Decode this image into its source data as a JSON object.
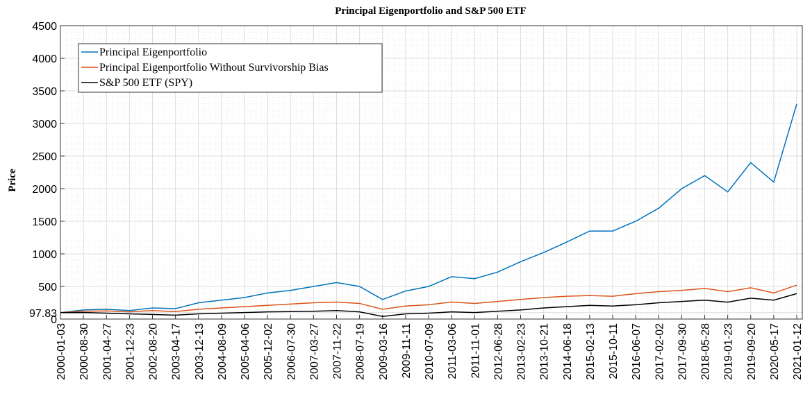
{
  "chart_data": {
    "type": "line",
    "title": "Principal Eigenportfolio and S&P 500 ETF",
    "y_label": "Price",
    "x": [
      "2000-01-03",
      "2000-08-30",
      "2001-04-27",
      "2001-12-23",
      "2002-08-20",
      "2003-04-17",
      "2003-12-13",
      "2004-08-09",
      "2005-04-06",
      "2005-12-02",
      "2006-07-30",
      "2007-03-27",
      "2007-11-22",
      "2008-07-19",
      "2009-03-16",
      "2009-11-11",
      "2010-07-09",
      "2011-03-06",
      "2011-11-01",
      "2012-06-28",
      "2013-02-23",
      "2013-10-21",
      "2014-06-18",
      "2015-02-13",
      "2015-10-11",
      "2016-06-07",
      "2017-02-02",
      "2017-09-30",
      "2018-05-28",
      "2019-01-23",
      "2019-09-20",
      "2020-05-17",
      "2021-01-12"
    ],
    "series": [
      {
        "name": "Principal Eigenportfolio",
        "color": "#0072bd",
        "values": [
          97.83,
          140,
          150,
          130,
          170,
          160,
          250,
          290,
          330,
          400,
          440,
          500,
          560,
          500,
          300,
          430,
          500,
          650,
          620,
          720,
          880,
          1020,
          1180,
          1350,
          1350,
          1500,
          1700,
          2000,
          2200,
          1950,
          2400,
          2100,
          3300
        ]
      },
      {
        "name": "Principal Eigenportfolio Without Survivorship Bias",
        "color": "#d95319",
        "values": [
          97.83,
          120,
          125,
          110,
          130,
          115,
          150,
          170,
          190,
          210,
          230,
          250,
          260,
          240,
          150,
          200,
          220,
          260,
          240,
          270,
          300,
          330,
          350,
          360,
          350,
          390,
          420,
          440,
          470,
          420,
          480,
          400,
          520
        ]
      },
      {
        "name": "S&P 500 ETF (SPY)",
        "color": "#000000",
        "values": [
          97.83,
          100,
          90,
          80,
          70,
          60,
          80,
          90,
          100,
          110,
          115,
          120,
          130,
          110,
          40,
          80,
          90,
          110,
          100,
          120,
          140,
          170,
          190,
          210,
          200,
          220,
          250,
          270,
          290,
          260,
          320,
          290,
          390
        ]
      }
    ],
    "ylim": [
      0,
      4500
    ],
    "yticks": [
      0,
      97.83,
      500,
      1000,
      1500,
      2000,
      2500,
      3000,
      3500,
      4000,
      4500
    ],
    "grid": true,
    "legend": "upper left"
  }
}
